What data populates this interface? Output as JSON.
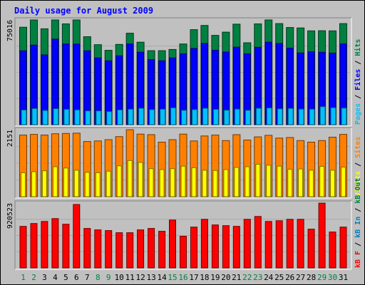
{
  "chart_data": {
    "type": "bar",
    "title": "Daily usage for August 2009",
    "categories": [
      "1",
      "2",
      "3",
      "4",
      "5",
      "6",
      "7",
      "8",
      "9",
      "10",
      "11",
      "12",
      "13",
      "14",
      "15",
      "16",
      "17",
      "18",
      "19",
      "20",
      "21",
      "22",
      "23",
      "24",
      "25",
      "26",
      "27",
      "28",
      "29",
      "30",
      "31"
    ],
    "weekend_days": [
      "1",
      "2",
      "8",
      "9",
      "15",
      "16",
      "22",
      "23",
      "29",
      "30"
    ],
    "panels": [
      {
        "id": "hits",
        "max_label": "75016",
        "ymax": 75016,
        "legend": [
          {
            "text": "Pages",
            "color": "#00c0ff"
          },
          {
            "text": "Files",
            "color": "#0000ff"
          },
          {
            "text": "Hits",
            "color": "#008040"
          }
        ],
        "series": [
          {
            "name": "Hits",
            "color": "#008040",
            "values": [
              69800,
              75000,
              68700,
              75000,
              72200,
              75000,
              63000,
              57300,
              53300,
              57500,
              65500,
              59100,
              53000,
              53000,
              53900,
              57800,
              68100,
              71100,
              64000,
              66300,
              72000,
              58700,
              72200,
              75000,
              72400,
              69600,
              69300,
              67200,
              67300,
              67200,
              72400
            ]
          },
          {
            "name": "Files",
            "color": "#0000ff",
            "values": [
              52900,
              57000,
              50000,
              61300,
              57800,
              57700,
              52900,
              47800,
              45800,
              49300,
              57800,
              51900,
              46600,
              45800,
              47800,
              50800,
              54600,
              58200,
              53300,
              52000,
              55500,
              50800,
              55400,
              59100,
              58100,
              54800,
              51400,
              52200,
              51900,
              51300,
              57800
            ]
          },
          {
            "name": "Pages",
            "color": "#00c0ff",
            "values": [
              10500,
              11600,
              10200,
              11500,
              11000,
              10600,
              9900,
              9900,
              9500,
              10600,
              11100,
              11800,
              10800,
              11100,
              12100,
              10300,
              10800,
              11800,
              11000,
              10400,
              11200,
              10300,
              11800,
              12000,
              11400,
              11700,
              11200,
              11100,
              12900,
              12200,
              11900
            ]
          }
        ]
      },
      {
        "id": "visits",
        "max_label": "2151",
        "ymax": 2151,
        "legend": [
          {
            "text": "Visits",
            "color": "#ffff00"
          },
          {
            "text": "Sites",
            "color": "#ff8000"
          }
        ],
        "series": [
          {
            "name": "Sites",
            "color": "#ff8000",
            "values": [
              1980,
              2000,
              1980,
              2020,
              2030,
              2040,
              1770,
              1790,
              1830,
              1930,
              2150,
              2010,
              1990,
              1750,
              1830,
              2010,
              1790,
              1950,
              1980,
              1800,
              1990,
              1820,
              1920,
              1970,
              1880,
              1900,
              1800,
              1750,
              1800,
              1910,
              2000
            ]
          },
          {
            "name": "Visits",
            "color": "#ffff00",
            "values": [
              770,
              800,
              830,
              960,
              920,
              850,
              780,
              770,
              820,
              990,
              1160,
              1100,
              900,
              870,
              900,
              980,
              930,
              850,
              840,
              870,
              940,
              960,
              1040,
              1010,
              980,
              880,
              890,
              850,
              970,
              850,
              950
            ]
          }
        ]
      },
      {
        "id": "kbytes",
        "max_label": "920523",
        "ymax": 920523,
        "legend": [
          {
            "text": "kB F",
            "color": "#ff0000"
          },
          {
            "text": "kB In",
            "color": "#0080c0"
          },
          {
            "text": "kB Out",
            "color": "#008040"
          }
        ],
        "series": [
          {
            "name": "kB F",
            "color": "#ff0000",
            "values": [
              590000,
              630000,
              660000,
              700000,
              620000,
              900000,
              560000,
              540000,
              530000,
              500000,
              500000,
              540000,
              560000,
              520000,
              680000,
              450000,
              580000,
              690000,
              610000,
              600000,
              590000,
              690000,
              730000,
              660000,
              670000,
              690000,
              690000,
              550000,
              920000,
              510000,
              580000
            ]
          }
        ]
      }
    ]
  }
}
